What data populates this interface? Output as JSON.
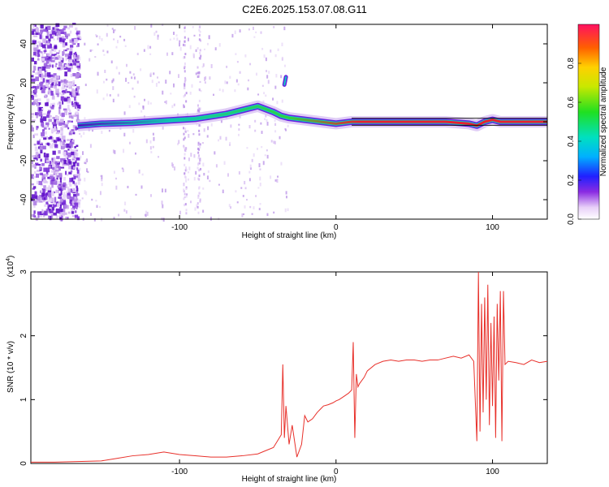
{
  "title": "C2E6.2025.153.07.08.G11",
  "chart_data": [
    {
      "type": "heatmap",
      "title": "",
      "xlabel": "Height of straight line (km)",
      "ylabel": "Frequency (Hz)",
      "xlim": [
        -195,
        135
      ],
      "ylim": [
        -50,
        50
      ],
      "xticks": [
        -100,
        0,
        100
      ],
      "yticks": [
        -40,
        -20,
        0,
        20,
        40
      ],
      "grid": false,
      "colorbar": {
        "label": "Normalized spectral amplitude",
        "range": [
          0,
          1
        ],
        "ticks": [
          "0.0",
          "0.2",
          "0.4",
          "0.6",
          "0.8"
        ]
      },
      "ridge": {
        "x": [
          -165,
          -150,
          -130,
          -110,
          -90,
          -70,
          -60,
          -50,
          -40,
          -35,
          -30,
          -20,
          -10,
          0,
          10,
          30,
          50,
          70,
          85,
          90,
          95,
          100,
          105,
          110,
          120,
          135
        ],
        "y": [
          -2,
          -1,
          -0.5,
          0.5,
          1.5,
          4,
          6,
          8,
          5,
          3,
          2,
          1,
          0,
          -1,
          0,
          0,
          0,
          0,
          -1,
          -2,
          0,
          1,
          0,
          0,
          0,
          0
        ]
      },
      "branch": {
        "x": [
          -33,
          -32
        ],
        "y": [
          19,
          23
        ]
      }
    },
    {
      "type": "line",
      "title": "",
      "xlabel": "Height of straight line (km)",
      "ylabel": "SNR (10 * v/v)",
      "exponent_label": "(x10",
      "exponent": "4",
      "xlim": [
        -195,
        135
      ],
      "ylim": [
        0,
        3
      ],
      "xticks": [
        -100,
        0,
        100
      ],
      "yticks": [
        0,
        1,
        2,
        3
      ],
      "grid": false,
      "color": "#e8302a",
      "series": [
        {
          "x": [
            -195,
            -180,
            -165,
            -150,
            -140,
            -130,
            -120,
            -110,
            -100,
            -90,
            -80,
            -70,
            -60,
            -50,
            -45,
            -40,
            -35,
            -34,
            -33,
            -32,
            -30,
            -28,
            -25,
            -22,
            -20,
            -18,
            -15,
            -12,
            -10,
            -8,
            -5,
            -2,
            0,
            2,
            5,
            8,
            10,
            11,
            12,
            13,
            14,
            15,
            18,
            20,
            25,
            30,
            35,
            40,
            45,
            50,
            55,
            60,
            65,
            70,
            75,
            80,
            85,
            88,
            90,
            91,
            92,
            93,
            94,
            95,
            96,
            97,
            98,
            99,
            100,
            101,
            102,
            103,
            104,
            105,
            106,
            107,
            108,
            110,
            115,
            120,
            125,
            130,
            135
          ],
          "y": [
            0.02,
            0.02,
            0.03,
            0.04,
            0.08,
            0.12,
            0.14,
            0.18,
            0.14,
            0.12,
            0.1,
            0.1,
            0.12,
            0.15,
            0.2,
            0.25,
            0.45,
            1.55,
            0.4,
            0.9,
            0.3,
            0.6,
            0.1,
            0.3,
            0.75,
            0.65,
            0.7,
            0.8,
            0.85,
            0.9,
            0.92,
            0.95,
            0.98,
            1.0,
            1.05,
            1.1,
            1.15,
            1.9,
            0.4,
            1.4,
            1.2,
            1.25,
            1.35,
            1.45,
            1.55,
            1.6,
            1.62,
            1.6,
            1.62,
            1.62,
            1.6,
            1.62,
            1.62,
            1.65,
            1.68,
            1.65,
            1.7,
            1.6,
            0.35,
            3.0,
            0.5,
            2.5,
            0.8,
            2.6,
            1.0,
            2.8,
            0.6,
            2.2,
            0.9,
            2.3,
            0.4,
            2.5,
            1.3,
            2.7,
            0.35,
            2.7,
            1.55,
            1.6,
            1.58,
            1.55,
            1.62,
            1.58,
            1.6
          ]
        }
      ]
    }
  ]
}
